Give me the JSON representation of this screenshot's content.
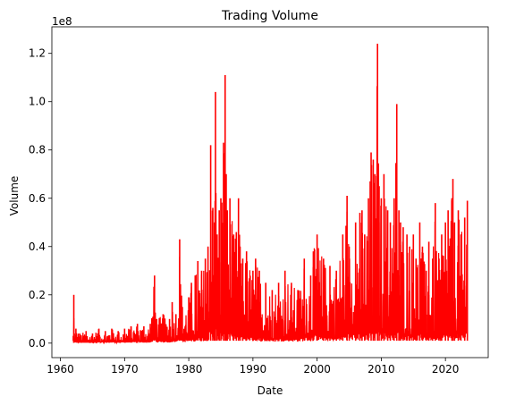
{
  "chart_data": {
    "type": "line",
    "title": "Trading Volume",
    "xlabel": "Date",
    "ylabel": "Volume",
    "y_offset_label": "1e8",
    "x_ticks": [
      "1960",
      "1970",
      "1980",
      "1990",
      "2000",
      "2010",
      "2020"
    ],
    "y_ticks": [
      "0.0",
      "0.2",
      "0.4",
      "0.6",
      "0.8",
      "1.0",
      "1.2"
    ],
    "xlim": [
      "1958-09-01",
      "2026-09-01"
    ],
    "ylim": [
      -0.06,
      1.31
    ],
    "grid": false,
    "line_color": "#ff0000",
    "series": [
      {
        "x": [
          "1962-01-02",
          "1962-02-01",
          "1962-03-01",
          "1962-06-01",
          "1963-01-01",
          "1964-01-01",
          "1965-01-01",
          "1966-01-01",
          "1967-01-01",
          "1968-01-01",
          "1969-01-01",
          "1970-01-01",
          "1971-01-01",
          "1972-01-01",
          "1973-01-01",
          "1974-01-01",
          "1974-09-01",
          "1975-01-01",
          "1976-01-01",
          "1977-01-01",
          "1977-06-01",
          "1978-01-01",
          "1978-08-01",
          "1979-01-01",
          "1980-01-01",
          "1980-06-01",
          "1981-01-01",
          "1981-06-01",
          "1982-01-01",
          "1982-08-01",
          "1983-01-01",
          "1983-06-01",
          "1983-10-01",
          "1984-01-01",
          "1984-03-01",
          "1984-06-01",
          "1984-10-01",
          "1985-01-01",
          "1985-06-01",
          "1985-09-01",
          "1985-11-01",
          "1986-01-01",
          "1986-06-01",
          "1987-01-01",
          "1987-06-01",
          "1987-10-01",
          "1988-01-01",
          "1988-06-01",
          "1989-01-01",
          "1990-01-01",
          "1990-06-01",
          "1991-01-01",
          "1992-01-01",
          "1993-01-01",
          "1994-01-01",
          "1995-01-01",
          "1996-01-01",
          "1997-01-01",
          "1998-01-01",
          "1999-01-01",
          "1999-06-01",
          "2000-01-01",
          "2001-01-01",
          "2002-01-01",
          "2003-01-01",
          "2004-01-01",
          "2004-09-01",
          "2005-01-01",
          "2006-01-01",
          "2006-09-01",
          "2007-01-01",
          "2007-06-01",
          "2008-01-01",
          "2008-06-01",
          "2008-10-01",
          "2009-01-01",
          "2009-06-01",
          "2009-09-01",
          "2010-01-01",
          "2010-06-01",
          "2011-01-01",
          "2011-06-01",
          "2012-01-01",
          "2012-06-01",
          "2012-10-01",
          "2013-01-01",
          "2013-06-01",
          "2014-01-01",
          "2014-06-01",
          "2015-01-01",
          "2015-06-01",
          "2016-01-01",
          "2016-06-01",
          "2017-01-01",
          "2017-06-01",
          "2018-01-01",
          "2018-06-01",
          "2019-01-01",
          "2019-06-01",
          "2020-01-01",
          "2020-06-01",
          "2021-01-01",
          "2021-03-01",
          "2021-06-01",
          "2022-01-01",
          "2022-06-01",
          "2023-01-01",
          "2023-06-01"
        ],
        "y": [
          0.03,
          0.2,
          0.04,
          0.06,
          0.04,
          0.05,
          0.04,
          0.06,
          0.05,
          0.06,
          0.05,
          0.06,
          0.07,
          0.08,
          0.07,
          0.08,
          0.28,
          0.1,
          0.12,
          0.1,
          0.17,
          0.12,
          0.43,
          0.15,
          0.19,
          0.25,
          0.28,
          0.34,
          0.3,
          0.35,
          0.4,
          0.82,
          0.56,
          0.5,
          1.04,
          0.45,
          0.55,
          0.6,
          0.83,
          1.11,
          0.7,
          0.55,
          0.6,
          0.45,
          0.46,
          0.6,
          0.4,
          0.35,
          0.38,
          0.3,
          0.35,
          0.3,
          0.25,
          0.22,
          0.25,
          0.3,
          0.25,
          0.22,
          0.35,
          0.28,
          0.38,
          0.45,
          0.35,
          0.32,
          0.3,
          0.45,
          0.61,
          0.4,
          0.5,
          0.54,
          0.55,
          0.45,
          0.6,
          0.79,
          0.76,
          0.7,
          1.24,
          0.65,
          0.6,
          0.7,
          0.55,
          0.5,
          0.6,
          0.99,
          0.55,
          0.5,
          0.48,
          0.45,
          0.4,
          0.45,
          0.35,
          0.5,
          0.4,
          0.3,
          0.42,
          0.35,
          0.58,
          0.35,
          0.45,
          0.5,
          0.55,
          0.6,
          0.68,
          0.5,
          0.55,
          0.45,
          0.52,
          0.59
        ]
      }
    ]
  }
}
